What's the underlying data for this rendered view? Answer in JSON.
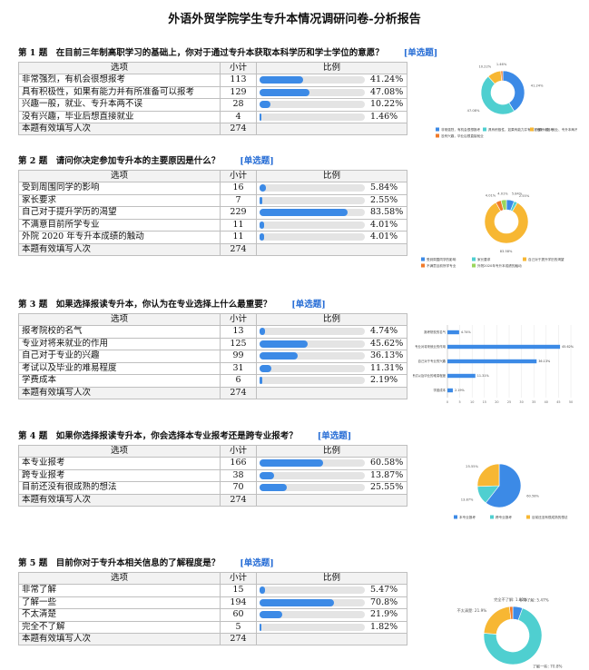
{
  "page": {
    "title": "外语外贸学院学生专升本情况调研问卷-分析报告"
  },
  "table_headers": {
    "option": "选项",
    "count": "小计",
    "ratio": "比例"
  },
  "total_label": "本题有效填写人次",
  "questions": [
    {
      "heading": "第 1 题　在目前三年制高职学习的基础上，你对于通过专升本获取本科学历和学士学位的意愿？",
      "type": "[单选题]",
      "options": [
        {
          "label": "非常强烈，有机会很想报考",
          "count": 113,
          "percent": "41.24%",
          "value": 41.24
        },
        {
          "label": "具有积极性，如果有能力并有所准备可以报考",
          "count": 129,
          "percent": "47.08%",
          "value": 47.08
        },
        {
          "label": "兴趣一般，就业、专升本两不误",
          "count": 28,
          "percent": "10.22%",
          "value": 10.22
        },
        {
          "label": "没有兴趣，毕业后想直接就业",
          "count": 4,
          "percent": "1.46%",
          "value": 1.46
        }
      ],
      "total": 274
    },
    {
      "heading": "第 2 题　请问你决定参加专升本的主要原因是什么？",
      "type": "[单选题]",
      "options": [
        {
          "label": "受到周围同学的影响",
          "count": 16,
          "percent": "5.84%",
          "value": 5.84
        },
        {
          "label": "家长要求",
          "count": 7,
          "percent": "2.55%",
          "value": 2.55
        },
        {
          "label": "自己对于提升学历的渴望",
          "count": 229,
          "percent": "83.58%",
          "value": 83.58
        },
        {
          "label": "不满意目前所学专业",
          "count": 11,
          "percent": "4.01%",
          "value": 4.01
        },
        {
          "label": "外院 2020 年专升本成绩的触动",
          "count": 11,
          "percent": "4.01%",
          "value": 4.01
        }
      ],
      "total": 274
    },
    {
      "heading": "第 3 题　如果选择报读专升本，你认为在专业选择上什么最重要？",
      "type": "[单选题]",
      "options": [
        {
          "label": "报考院校的名气",
          "count": 13,
          "percent": "4.74%",
          "value": 4.74
        },
        {
          "label": "专业对将来就业的作用",
          "count": 125,
          "percent": "45.62%",
          "value": 45.62
        },
        {
          "label": "自己对于专业的兴趣",
          "count": 99,
          "percent": "36.13%",
          "value": 36.13
        },
        {
          "label": "考试以及毕业的难易程度",
          "count": 31,
          "percent": "11.31%",
          "value": 11.31
        },
        {
          "label": "学费成本",
          "count": 6,
          "percent": "2.19%",
          "value": 2.19
        }
      ],
      "total": 274
    },
    {
      "heading": "第 4 题　如果你选择报读专升本，你会选择本专业报考还是跨专业报考？",
      "type": "[单选题]",
      "options": [
        {
          "label": "本专业报考",
          "count": 166,
          "percent": "60.58%",
          "value": 60.58
        },
        {
          "label": "跨专业报考",
          "count": 38,
          "percent": "13.87%",
          "value": 13.87
        },
        {
          "label": "目前还没有很成熟的想法",
          "count": 70,
          "percent": "25.55%",
          "value": 25.55
        }
      ],
      "total": 274
    },
    {
      "heading": "第 5 题　目前你对于专升本相关信息的了解程度是？",
      "type": "[单选题]",
      "options": [
        {
          "label": "非常了解",
          "count": 15,
          "percent": "5.47%",
          "value": 5.47
        },
        {
          "label": "了解一些",
          "count": 194,
          "percent": "70.8%",
          "value": 70.8
        },
        {
          "label": "不太清楚",
          "count": 60,
          "percent": "21.9%",
          "value": 21.9
        },
        {
          "label": "完全不了解",
          "count": 5,
          "percent": "1.82%",
          "value": 1.82
        }
      ],
      "total": 274
    }
  ],
  "chart_data": [
    {
      "type": "pie",
      "labels": [
        "非常强烈，有机会很想报考",
        "具有积极性，如果有能力并有所准备可以报考",
        "兴趣一般，就业、专升本两不误",
        "没有兴趣，毕业后想直接就业"
      ],
      "values": [
        41.24,
        47.08,
        10.22,
        1.46
      ],
      "slice_labels": [
        "41.24%",
        "47.08%",
        "10.22%",
        "1.46%"
      ],
      "colors": [
        "#3c8ae6",
        "#4fcfd0",
        "#f7b733",
        "#f07a2a"
      ],
      "legend": "bottom"
    },
    {
      "type": "pie",
      "labels": [
        "受到周围同学的影响",
        "家长要求",
        "自己对于提升学历的渴望",
        "不满意目前所学专业",
        "外院2020年专升本成绩的触动"
      ],
      "values": [
        5.84,
        2.55,
        83.58,
        4.01,
        4.01
      ],
      "slice_labels": [
        "5.84%",
        "2.55%",
        "83.58%",
        "4.01%",
        "4.01%"
      ],
      "colors": [
        "#3c8ae6",
        "#4fcfd0",
        "#f7b733",
        "#f07a2a",
        "#9ad65c"
      ],
      "legend": "bottom"
    },
    {
      "type": "bar",
      "orientation": "horizontal",
      "categories": [
        "报考院校的名气",
        "专业对将来就业的作用",
        "自己对于专业的兴趣",
        "考试以及毕业的难易程度",
        "学费成本"
      ],
      "values": [
        4.74,
        45.62,
        36.13,
        11.31,
        2.19
      ],
      "value_labels": [
        "4.74%",
        "45.62%",
        "36.13%",
        "11.31%",
        "2.19%"
      ],
      "xlim": [
        0,
        50
      ],
      "ticks": [
        "0",
        "5",
        "10",
        "15",
        "20",
        "25",
        "30",
        "35",
        "40",
        "45",
        "50"
      ],
      "color": "#3c8ae6",
      "grid": true
    },
    {
      "type": "pie",
      "labels": [
        "本专业报考",
        "跨专业报考",
        "目前还没有很成熟的想法"
      ],
      "values": [
        60.58,
        13.87,
        25.55
      ],
      "slice_labels": [
        "60.58%",
        "13.87%",
        "25.55%"
      ],
      "colors": [
        "#3c8ae6",
        "#4fcfd0",
        "#f7b733"
      ],
      "legend": "bottom"
    },
    {
      "type": "pie",
      "labels": [
        "非常了解",
        "了解一些",
        "不太清楚",
        "完全不了解"
      ],
      "values": [
        5.47,
        70.8,
        21.9,
        1.82
      ],
      "slice_labels": [
        "非常了解: 5.47%",
        "了解一些: 70.8%",
        "不太清楚: 21.9%",
        "完全不了解: 1.82%"
      ],
      "colors": [
        "#3c8ae6",
        "#4fcfd0",
        "#f7b733",
        "#f07a2a"
      ]
    }
  ]
}
